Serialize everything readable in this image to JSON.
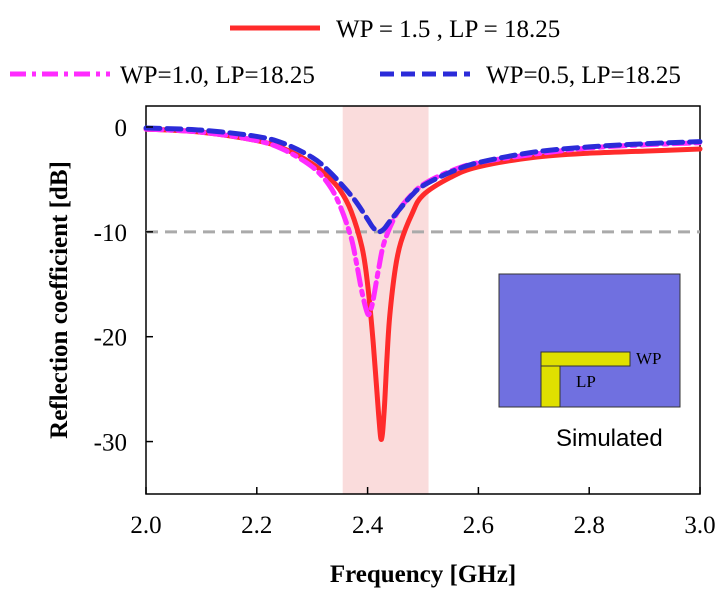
{
  "chart_data": {
    "type": "line",
    "title": "",
    "xlabel": "Frequency [GHz]",
    "ylabel": "Reflection coefficient [dB]",
    "xlim": [
      2.0,
      3.0
    ],
    "ylim": [
      -35,
      2
    ],
    "xticks": [
      "2.0",
      "2.2",
      "2.4",
      "2.6",
      "2.8",
      "3.0"
    ],
    "yticks": [
      "0",
      "-10",
      "-20",
      "-30"
    ],
    "xtick_values": [
      2.0,
      2.2,
      2.4,
      2.6,
      2.8,
      3.0
    ],
    "ytick_values": [
      0,
      -10,
      -20,
      -30
    ],
    "grid": false,
    "shaded_band": {
      "x": [
        2.355,
        2.51
      ],
      "color": "#fadcdc"
    },
    "reference_line": {
      "y": -10,
      "style": "dashed",
      "color": "#aaaaaa"
    },
    "series": [
      {
        "name": "WP = 1.5 , LP = 18.25",
        "color": "#ff2b2b",
        "dash": "solid",
        "x": [
          2.0,
          2.1,
          2.2,
          2.25,
          2.3,
          2.33,
          2.35,
          2.37,
          2.39,
          2.4,
          2.41,
          2.42,
          2.425,
          2.43,
          2.435,
          2.44,
          2.45,
          2.46,
          2.48,
          2.5,
          2.55,
          2.6,
          2.7,
          2.8,
          2.9,
          3.0
        ],
        "y": [
          -0.2,
          -0.5,
          -1.3,
          -2.1,
          -3.5,
          -4.8,
          -6.0,
          -8.0,
          -11.5,
          -15.0,
          -20.5,
          -27.5,
          -29.8,
          -27.0,
          -22.0,
          -18.0,
          -13.5,
          -11.0,
          -8.3,
          -6.5,
          -4.8,
          -3.8,
          -2.9,
          -2.5,
          -2.3,
          -2.1
        ]
      },
      {
        "name": "WP=1.0, LP=18.25",
        "color": "#ff2bff",
        "dash": "dashdot",
        "x": [
          2.0,
          2.1,
          2.2,
          2.25,
          2.3,
          2.33,
          2.35,
          2.37,
          2.38,
          2.39,
          2.4,
          2.405,
          2.41,
          2.42,
          2.43,
          2.45,
          2.47,
          2.5,
          2.55,
          2.6,
          2.7,
          2.8,
          2.9,
          3.0
        ],
        "y": [
          -0.2,
          -0.5,
          -1.3,
          -2.2,
          -3.8,
          -5.5,
          -7.5,
          -10.5,
          -13.0,
          -15.8,
          -17.8,
          -17.5,
          -16.5,
          -13.5,
          -11.0,
          -8.5,
          -7.0,
          -5.5,
          -4.2,
          -3.4,
          -2.6,
          -2.0,
          -1.7,
          -1.5
        ]
      },
      {
        "name": "WP=0.5, LP=18.25",
        "color": "#2b2bd9",
        "dash": "dash",
        "x": [
          2.0,
          2.1,
          2.2,
          2.25,
          2.3,
          2.33,
          2.36,
          2.38,
          2.4,
          2.41,
          2.42,
          2.43,
          2.44,
          2.46,
          2.48,
          2.5,
          2.55,
          2.6,
          2.7,
          2.8,
          2.9,
          3.0
        ],
        "y": [
          -0.1,
          -0.3,
          -0.9,
          -1.6,
          -2.9,
          -4.2,
          -5.9,
          -7.2,
          -8.8,
          -9.6,
          -10.0,
          -9.7,
          -9.0,
          -7.7,
          -6.5,
          -5.6,
          -4.3,
          -3.4,
          -2.4,
          -1.9,
          -1.6,
          -1.4
        ]
      }
    ]
  },
  "inset": {
    "wp_label": "WP",
    "lp_label": "LP",
    "caption": "Simulated",
    "substrate_color": "#7070e0",
    "strip_color": "#e0e000"
  }
}
